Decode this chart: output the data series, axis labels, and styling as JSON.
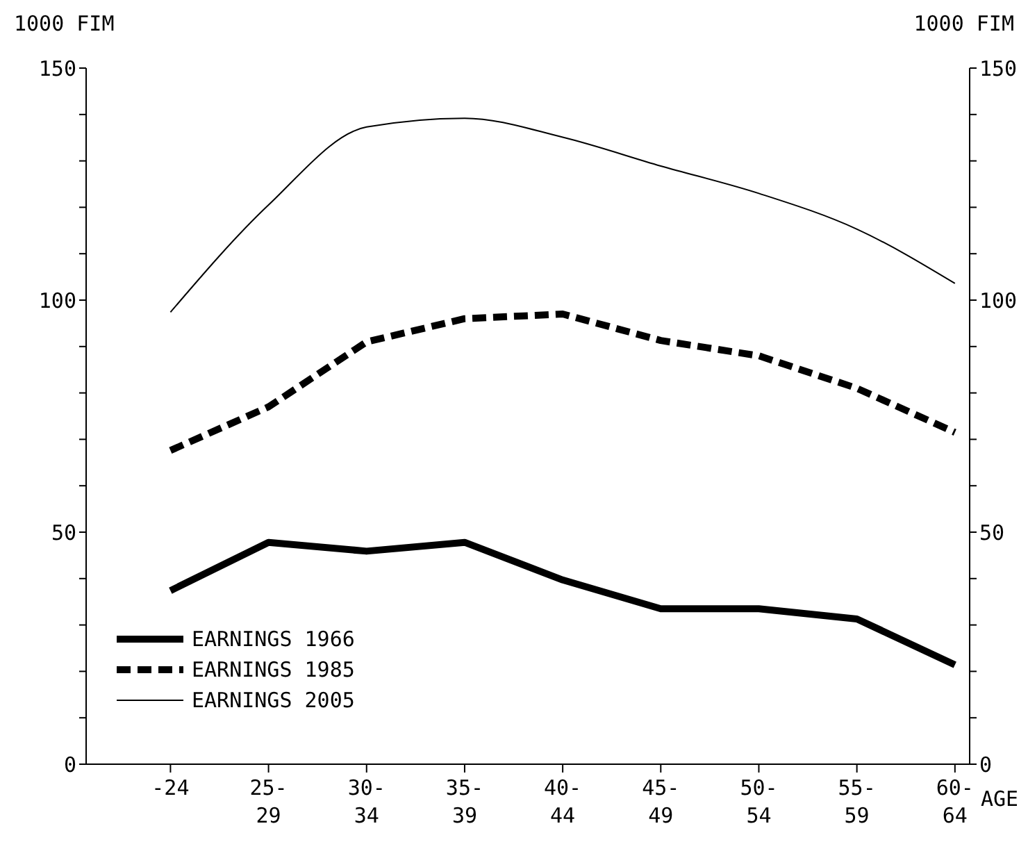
{
  "chart_data": {
    "type": "line",
    "ylabel": "1000 FIM",
    "y2label": "1000 FIM",
    "xlabel": "AGE",
    "categories": [
      "-24",
      "25-\n29",
      "30-\n34",
      "35-\n39",
      "40-\n44",
      "45-\n49",
      "50-\n54",
      "55-\n59",
      "60-\n64"
    ],
    "series": [
      {
        "name": "EARNINGS 1966",
        "color": "#000000",
        "line_style": "solid",
        "values": [
          37.4,
          47.8,
          45.9,
          47.8,
          39.7,
          33.5,
          33.5,
          31.3,
          21.4
        ]
      },
      {
        "name": "EARNINGS 1985",
        "color": "#000000",
        "line_style": "dashed",
        "values": [
          67.6,
          77,
          91,
          96,
          97,
          91.3,
          88,
          81,
          71.5
        ]
      },
      {
        "name": "EARNINGS 2005",
        "color": "#000000",
        "line_style": "solid",
        "values": [
          97.4,
          120.5,
          137.3,
          139.2,
          135.1,
          128.9,
          123,
          115.3,
          103.6
        ]
      }
    ],
    "ylim": [
      0,
      150
    ],
    "y2lim": [
      0,
      150
    ],
    "yticks": [
      0,
      {
        "value": 10,
        "label": null
      },
      {
        "value": 20,
        "label": null
      },
      {
        "value": 30,
        "label": null
      },
      {
        "value": 40,
        "label": null
      },
      50,
      {
        "value": 60,
        "label": null
      },
      {
        "value": 70,
        "label": null
      },
      {
        "value": 80,
        "label": null
      },
      {
        "value": 90,
        "label": null
      },
      100,
      {
        "value": 110,
        "label": null
      },
      {
        "value": 120,
        "label": null
      },
      {
        "value": 130,
        "label": null
      },
      {
        "value": 140,
        "label": null
      },
      150
    ],
    "y2ticks": [
      0,
      {
        "value": 10,
        "label": null
      },
      {
        "value": 20,
        "label": null
      },
      {
        "value": 30,
        "label": null
      },
      {
        "value": 40,
        "label": null
      },
      50,
      {
        "value": 60,
        "label": null
      },
      {
        "value": 70,
        "label": null
      },
      {
        "value": 80,
        "label": null
      },
      {
        "value": 90,
        "label": null
      },
      100,
      {
        "value": 110,
        "label": null
      },
      {
        "value": 120,
        "label": null
      },
      {
        "value": 130,
        "label": null
      },
      {
        "value": 140,
        "label": null
      },
      150
    ],
    "legend": "bottom left",
    "grid": false,
    "marker": "none"
  }
}
